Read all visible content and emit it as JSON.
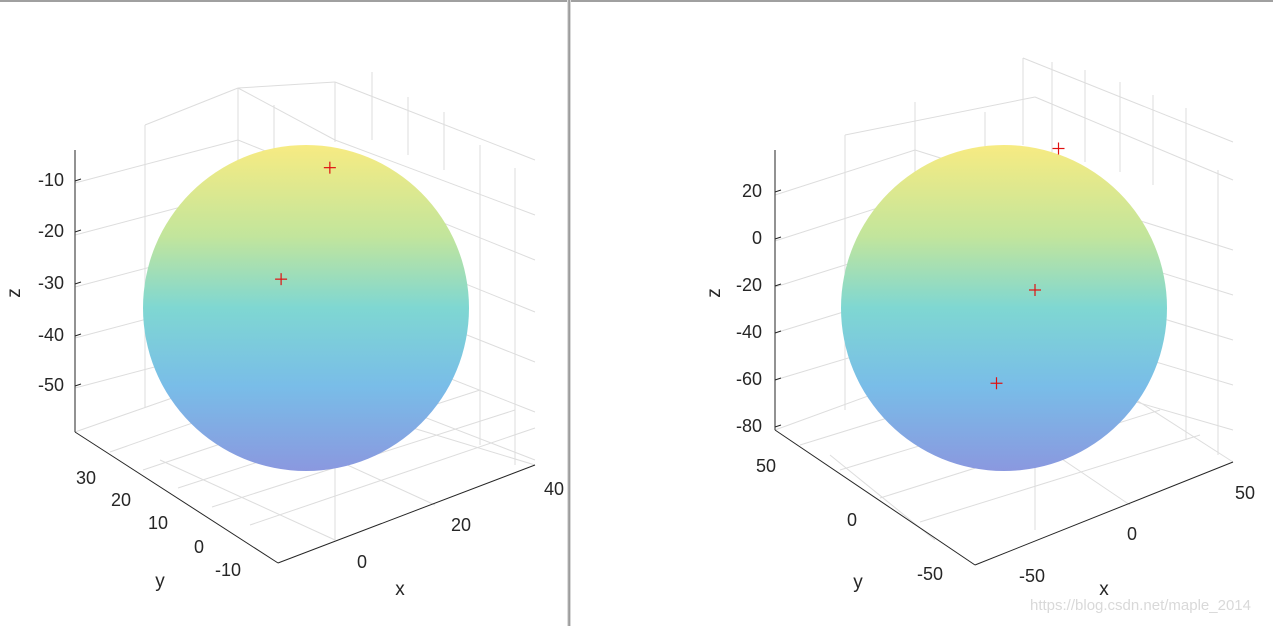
{
  "chart_data": [
    {
      "type": "scatter",
      "surface": "sphere",
      "colormap": "parula",
      "colors": {
        "top": "#f7eb82",
        "upper": "#c2e59c",
        "middle": "#7fd7d2",
        "lower": "#79bde8",
        "bottom": "#8a98df",
        "marker": "#e01010"
      },
      "grid": true,
      "xlabel": "x",
      "ylabel": "y",
      "zlabel": "z",
      "x_ticks": [
        "0",
        "20",
        "40"
      ],
      "y_ticks": [
        "-10",
        "0",
        "10",
        "20",
        "30"
      ],
      "z_ticks": [
        "-10",
        "-20",
        "-30",
        "-40",
        "-50"
      ],
      "marker": "+",
      "points": [
        {
          "x": 10,
          "y": 8,
          "z": -25
        },
        {
          "x": 15,
          "y": 3,
          "z": -47
        }
      ]
    },
    {
      "type": "scatter",
      "surface": "sphere",
      "colormap": "parula",
      "colors": {
        "top": "#f7eb82",
        "upper": "#c2e59c",
        "middle": "#7fd7d2",
        "lower": "#79bde8",
        "bottom": "#8a98df",
        "marker": "#e01010"
      },
      "grid": true,
      "xlabel": "x",
      "ylabel": "y",
      "zlabel": "z",
      "x_ticks": [
        "-50",
        "0",
        "50"
      ],
      "y_ticks": [
        "-50",
        "0",
        "50"
      ],
      "z_ticks": [
        "20",
        "0",
        "-20",
        "-40",
        "-60",
        "-80"
      ],
      "marker": "+",
      "points": [
        {
          "x": -20,
          "y": 30,
          "z": 25
        },
        {
          "x": 0,
          "y": 0,
          "z": -20
        },
        {
          "x": 20,
          "y": -10,
          "z": -80
        }
      ]
    }
  ],
  "watermark": "https://blog.csdn.net/maple_2014"
}
